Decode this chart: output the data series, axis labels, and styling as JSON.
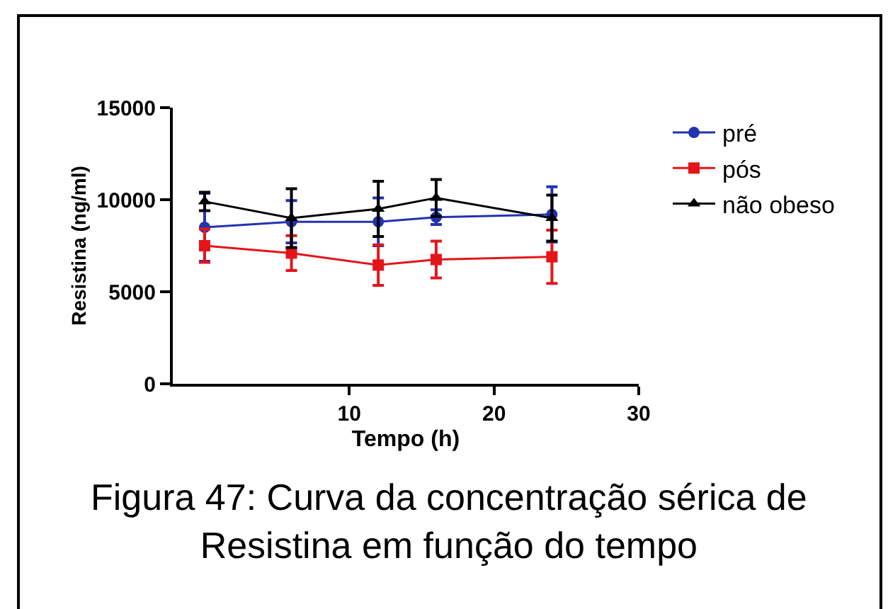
{
  "chart_data": {
    "type": "line",
    "x": [
      0,
      6,
      12,
      16,
      24
    ],
    "xlabel": "Tempo (h)",
    "ylabel": "Resistina (ng/ml)",
    "xlim": [
      -2.2,
      30
    ],
    "xticks": [
      10,
      20,
      30
    ],
    "ylim": [
      0,
      15000
    ],
    "yticks": [
      0,
      5000,
      10000,
      15000
    ],
    "legend": "top right",
    "annotations": [
      "Figura 47: Curva da concentração sérica de\nResistina em função do tempo"
    ],
    "series": [
      {
        "name": "pré",
        "color": "#2233b0",
        "marker": "circle",
        "values": [
          8500,
          8800,
          8800,
          9050,
          9200
        ],
        "errors": [
          1850,
          1150,
          1300,
          400,
          1500
        ]
      },
      {
        "name": "pós",
        "color": "#e3151b",
        "marker": "square",
        "values": [
          7500,
          7100,
          6450,
          6750,
          6900
        ],
        "errors": [
          900,
          950,
          1100,
          1000,
          1450
        ]
      },
      {
        "name": "não obeso",
        "color": "#000000",
        "marker": "triangle",
        "values": [
          9900,
          9000,
          9500,
          10100,
          9000
        ],
        "errors": [
          500,
          1600,
          1500,
          1000,
          1250
        ]
      }
    ]
  }
}
